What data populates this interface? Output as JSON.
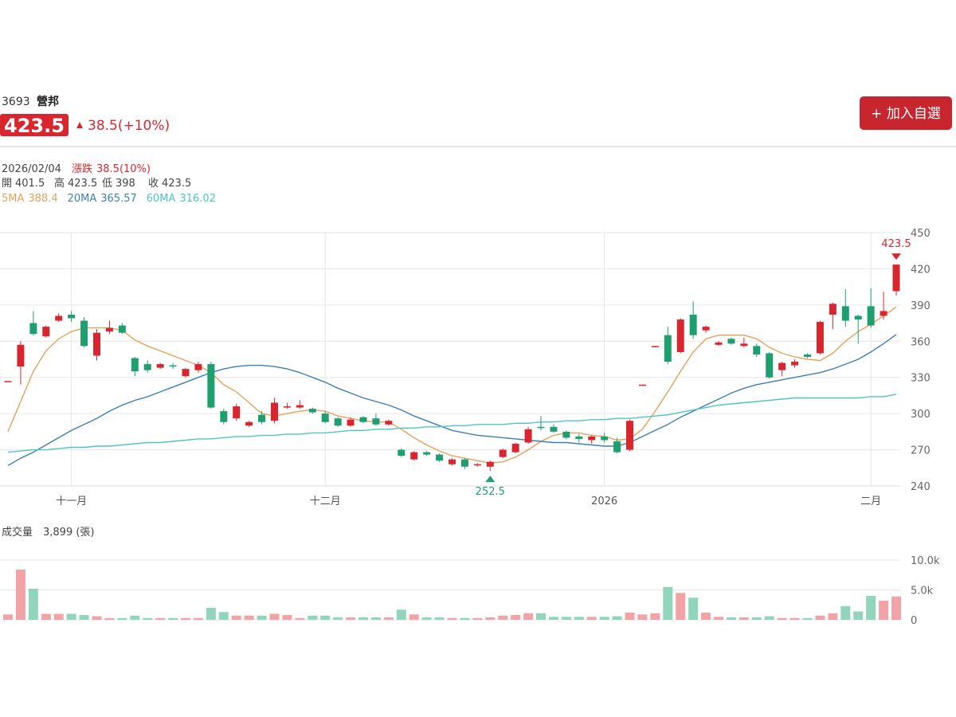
{
  "header": {
    "code": "3693",
    "name": "營邦",
    "change": "38.5(+10%)",
    "button": "+ 加入自選"
  },
  "info": {
    "date": "2026/02/04",
    "change_label": "漲跌",
    "change_value": "38.5(10%)",
    "open_label": "開",
    "high_label": "高",
    "low_label": "低",
    "close_label": "收"
  },
  "chart_data": [
    {
      "type": "candlestick",
      "up_color": "#d9262e",
      "down_color": "#1f9e6f",
      "categories": [
        null,
        null,
        null,
        null,
        null,
        "十一月",
        null,
        null,
        null,
        null,
        null,
        null,
        null,
        null,
        null,
        null,
        null,
        null,
        null,
        null,
        null,
        null,
        null,
        null,
        null,
        "十二月",
        null,
        null,
        null,
        null,
        null,
        null,
        null,
        null,
        null,
        null,
        null,
        null,
        null,
        null,
        null,
        null,
        null,
        null,
        null,
        null,
        null,
        "2026",
        null,
        null,
        null,
        null,
        null,
        null,
        null,
        null,
        null,
        null,
        null,
        null,
        null,
        null,
        null,
        null,
        null,
        null,
        null,
        null,
        "二月",
        null,
        null
      ],
      "open": [
        327,
        339,
        375,
        364,
        377,
        382,
        377,
        348,
        368,
        373,
        346,
        341,
        338,
        340,
        331,
        336,
        341,
        302,
        296,
        290,
        299,
        294,
        305,
        305,
        304,
        300,
        296,
        290,
        297,
        296,
        291,
        270,
        262,
        268,
        266,
        258,
        262,
        257,
        256,
        264,
        268,
        276,
        289,
        289,
        285,
        281,
        278,
        281,
        277,
        270,
        323,
        355,
        365,
        351,
        382,
        369,
        357,
        362,
        356,
        356,
        350,
        336,
        340,
        349,
        350,
        382,
        389,
        381,
        389,
        381,
        401.5
      ],
      "high": [
        327,
        360,
        385,
        373,
        383,
        385,
        380,
        370,
        377,
        375,
        347,
        344,
        342,
        342,
        338,
        343,
        343,
        304,
        308,
        294,
        302,
        313,
        309,
        311,
        305,
        302,
        297,
        297,
        298,
        300,
        295,
        271,
        269,
        269,
        267,
        263,
        263,
        259,
        261,
        271,
        276,
        289,
        298,
        291,
        286,
        283,
        282,
        284,
        280,
        295,
        324,
        356,
        372,
        379,
        393,
        373,
        360,
        363,
        363,
        358,
        351,
        343,
        345,
        350,
        377,
        392,
        403,
        382,
        404,
        401,
        423.5
      ],
      "low": [
        327,
        324,
        365,
        363,
        376,
        376,
        355,
        344,
        366,
        366,
        331,
        334,
        337,
        337,
        330,
        334,
        304,
        291,
        294,
        289,
        291,
        292,
        304,
        304,
        300,
        292,
        289,
        289,
        292,
        290,
        290,
        264,
        261,
        265,
        260,
        257,
        254,
        256,
        252.5,
        263,
        267,
        275,
        286,
        284,
        279,
        276,
        275,
        276,
        267,
        269,
        323,
        355,
        341,
        350,
        362,
        367,
        356,
        357,
        355,
        347,
        329,
        331,
        338,
        346,
        349,
        370,
        372,
        358,
        371,
        378,
        398
      ],
      "close": [
        327,
        357,
        366,
        372,
        381,
        379,
        356,
        367,
        371,
        367,
        335,
        336,
        341,
        339,
        337,
        341,
        305,
        293,
        306,
        293,
        293,
        309,
        306,
        307,
        301,
        293,
        290,
        295,
        293,
        291,
        294,
        265,
        268,
        266,
        261,
        262,
        256,
        258,
        260,
        270,
        275,
        287,
        288,
        285,
        280,
        279,
        281,
        278,
        268,
        294,
        324,
        356,
        343,
        378,
        365,
        372,
        359,
        358,
        358,
        349,
        330,
        342,
        343,
        347,
        376,
        391,
        377,
        378,
        373,
        385,
        423.5
      ],
      "ma": [
        {
          "name": "5MA",
          "color": "#e3a25c",
          "values": [
            285,
            310,
            335,
            352,
            362,
            368,
            371,
            371,
            371,
            369,
            361,
            356,
            352,
            348,
            344,
            340,
            334,
            324,
            318,
            309,
            300,
            298,
            300,
            302,
            303,
            302,
            298,
            296,
            294,
            293,
            293,
            287,
            280,
            274,
            269,
            265,
            263,
            261,
            259,
            260,
            264,
            270,
            277,
            282,
            284,
            284,
            282,
            281,
            278,
            279,
            287,
            302,
            318,
            335,
            351,
            362,
            365,
            365,
            365,
            362,
            355,
            350,
            347,
            345,
            344,
            350,
            360,
            368,
            374,
            381,
            388.4
          ]
        },
        {
          "name": "20MA",
          "color": "#3d7fb5",
          "values": [
            257,
            263,
            268,
            274,
            280,
            286,
            291,
            296,
            302,
            307,
            311,
            314,
            318,
            322,
            326,
            330,
            334,
            337,
            339,
            340,
            340,
            339,
            337,
            334,
            330,
            326,
            321,
            317,
            313,
            310,
            307,
            303,
            298,
            294,
            290,
            286,
            284,
            282,
            281,
            280,
            279,
            278,
            277,
            276,
            276,
            275,
            274,
            273,
            273,
            276,
            281,
            286,
            291,
            297,
            302,
            307,
            312,
            317,
            321,
            324,
            326,
            328,
            330,
            332,
            334,
            337,
            341,
            345,
            351,
            358,
            365.57
          ]
        },
        {
          "name": "60MA",
          "color": "#4fc4c8",
          "values": [
            268,
            269,
            270,
            270,
            271,
            272,
            272,
            273,
            273,
            274,
            275,
            276,
            276,
            277,
            278,
            279,
            279,
            280,
            281,
            281,
            282,
            282,
            283,
            283,
            284,
            284,
            285,
            286,
            286,
            287,
            287,
            288,
            288,
            289,
            289,
            290,
            290,
            291,
            291,
            291,
            292,
            292,
            293,
            293,
            294,
            294,
            295,
            295,
            296,
            296,
            297,
            298,
            299,
            301,
            303,
            305,
            307,
            308,
            309,
            310,
            311,
            312,
            313,
            313,
            313,
            313,
            313,
            313,
            314,
            314,
            316.02
          ]
        }
      ],
      "ylim": [
        240,
        450
      ],
      "yticks": [
        240,
        270,
        300,
        330,
        360,
        390,
        420,
        450
      ],
      "grid": true
    },
    {
      "type": "bar",
      "title": "成交量",
      "volume_text": "3,899 (張)",
      "up_color": "#f2a3a6",
      "down_color": "#92d5bd",
      "values": [
        900,
        8400,
        5200,
        1000,
        1000,
        1000,
        800,
        600,
        300,
        300,
        700,
        300,
        300,
        300,
        300,
        300,
        2000,
        1300,
        700,
        700,
        700,
        1000,
        800,
        300,
        700,
        700,
        400,
        400,
        400,
        400,
        400,
        1700,
        900,
        400,
        400,
        300,
        300,
        300,
        400,
        700,
        800,
        1100,
        1100,
        500,
        500,
        500,
        500,
        500,
        600,
        1200,
        900,
        1100,
        5500,
        4500,
        3700,
        1200,
        500,
        400,
        400,
        400,
        600,
        300,
        300,
        300,
        700,
        1100,
        2300,
        1400,
        4000,
        3200,
        3899
      ],
      "ylim": [
        0,
        10000
      ],
      "yticks": [
        0,
        {
          "value": 5000,
          "label": "5.0k"
        },
        {
          "value": 10000,
          "label": "10.0k"
        }
      ],
      "grid": true
    }
  ]
}
